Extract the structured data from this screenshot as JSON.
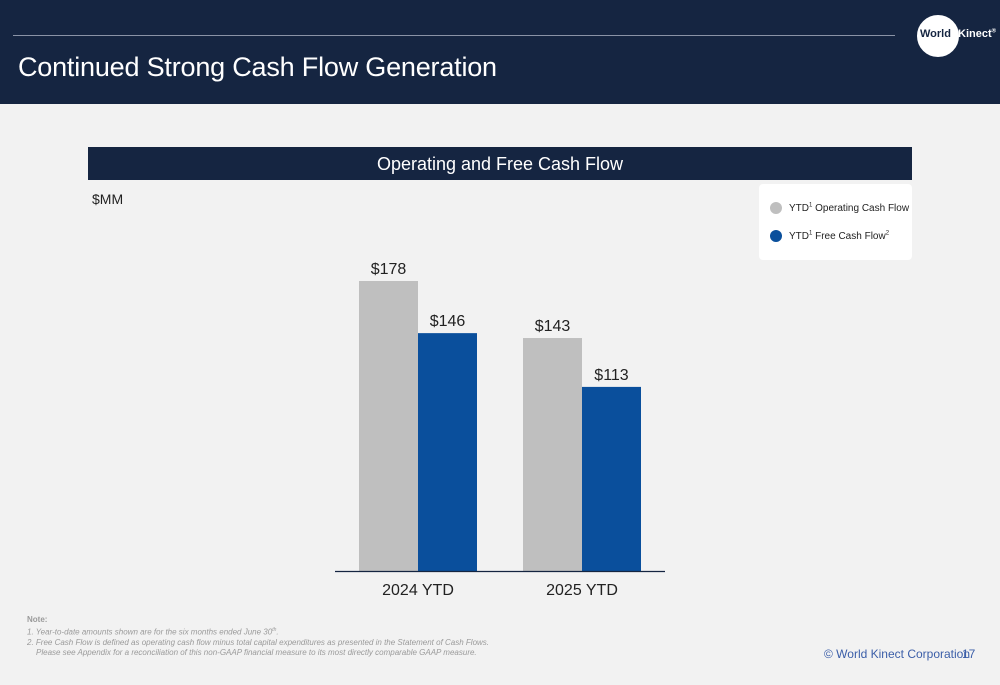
{
  "header": {
    "title": "Continued Strong Cash Flow Generation",
    "logo": {
      "word1": "World",
      "word2": "Kinect",
      "mark": "®"
    }
  },
  "chart": {
    "banner_title": "Operating and Free Cash Flow",
    "units_label": "$MM"
  },
  "legend": {
    "items": [
      {
        "prefix": "YTD",
        "sup": "1",
        "text": " Operating Cash Flow",
        "sup2": "",
        "color": "#bfbfbf"
      },
      {
        "prefix": "YTD",
        "sup": "1",
        "text": " Free Cash Flow",
        "sup2": "2",
        "color": "#0a4f9c"
      }
    ]
  },
  "chart_data": {
    "type": "bar",
    "categories": [
      "2024 YTD",
      "2025 YTD"
    ],
    "series": [
      {
        "name": "YTD1 Operating Cash Flow",
        "values": [
          178,
          143
        ],
        "labels": [
          "$178",
          "$143"
        ],
        "color": "#bfbfbf"
      },
      {
        "name": "YTD1 Free Cash Flow2",
        "values": [
          146,
          113
        ],
        "labels": [
          "$146",
          "$113"
        ],
        "color": "#0a4f9c"
      }
    ],
    "title": "Operating and Free Cash Flow",
    "ylabel": "$MM",
    "ylim": [
      0,
      178
    ],
    "grid": false,
    "legend_position": "top-right"
  },
  "footnotes": {
    "heading": "Note:",
    "line1": "1. Year-to-date amounts shown are for the six months ended June 30",
    "line1_sup": "th",
    "line1_end": ".",
    "line2": "2. Free Cash Flow is defined as operating cash flow minus total capital expenditures as presented in the Statement of Cash Flows.",
    "line3": "Please see Appendix for a reconciliation of this non-GAAP financial measure to its most directly comparable GAAP measure."
  },
  "footer": {
    "copyright": "© World Kinect Corporation",
    "page_number": "17"
  }
}
